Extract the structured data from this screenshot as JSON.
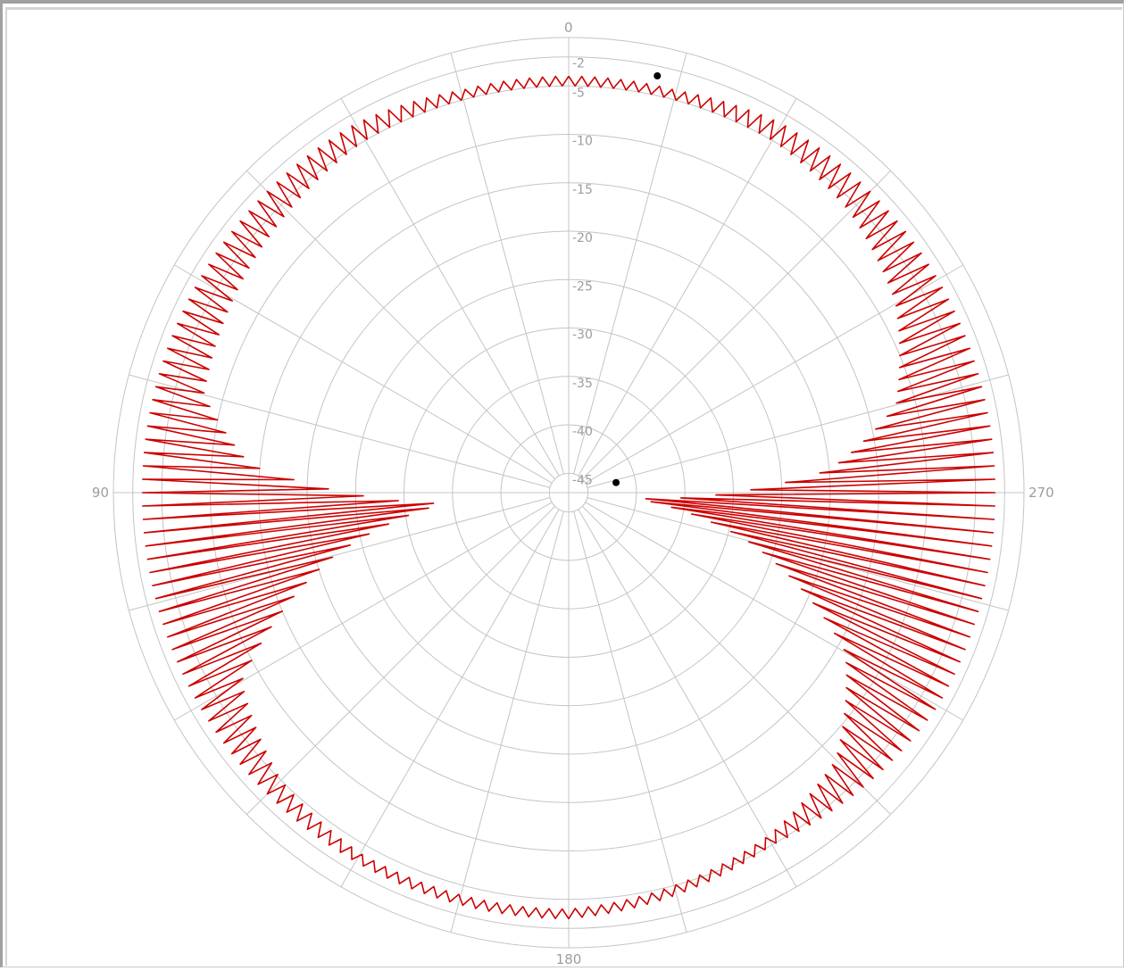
{
  "chart_data": {
    "type": "polar-line",
    "angle_direction": "counter-clockwise",
    "angle_zero": "top",
    "angle_labels": [
      "0",
      "90",
      "180",
      "270"
    ],
    "radial_labels": [
      "-2",
      "-5",
      "-10",
      "-15",
      "-20",
      "-25",
      "-30",
      "-35",
      "-40",
      "-45"
    ],
    "radial_range": [
      -47,
      0
    ],
    "grid": true,
    "spokes_every_deg": 15,
    "series": [
      {
        "color": "#cc0000",
        "pattern": "dense oscillating trace",
        "envelope": [
          {
            "angle": 0,
            "outer": -4,
            "inner": -5
          },
          {
            "angle": 15,
            "outer": -4,
            "inner": -5
          },
          {
            "angle": 30,
            "outer": -3,
            "inner": -5
          },
          {
            "angle": 45,
            "outer": -3,
            "inner": -6
          },
          {
            "angle": 60,
            "outer": -3,
            "inner": -7
          },
          {
            "angle": 75,
            "outer": -3,
            "inner": -8
          },
          {
            "angle": 85,
            "outer": -3,
            "inner": -14
          },
          {
            "angle": 95,
            "outer": -3,
            "inner": -34
          },
          {
            "angle": 105,
            "outer": -3,
            "inner": -22
          },
          {
            "angle": 120,
            "outer": -3,
            "inner": -8
          },
          {
            "angle": 135,
            "outer": -3,
            "inner": -5
          },
          {
            "angle": 150,
            "outer": -3,
            "inner": -4
          },
          {
            "angle": 165,
            "outer": -3,
            "inner": -4
          },
          {
            "angle": 180,
            "outer": -3,
            "inner": -4
          },
          {
            "angle": 195,
            "outer": -4,
            "inner": -5
          },
          {
            "angle": 210,
            "outer": -5,
            "inner": -6
          },
          {
            "angle": 225,
            "outer": -4,
            "inner": -8
          },
          {
            "angle": 240,
            "outer": -3,
            "inner": -14
          },
          {
            "angle": 255,
            "outer": -3,
            "inner": -28
          },
          {
            "angle": 265,
            "outer": -3,
            "inner": -40
          },
          {
            "angle": 275,
            "outer": -3,
            "inner": -20
          },
          {
            "angle": 285,
            "outer": -3,
            "inner": -12
          },
          {
            "angle": 300,
            "outer": -3,
            "inner": -8
          },
          {
            "angle": 315,
            "outer": -3,
            "inner": -6
          },
          {
            "angle": 330,
            "outer": -3,
            "inner": -5
          },
          {
            "angle": 345,
            "outer": -4,
            "inner": -5
          },
          {
            "angle": 360,
            "outer": -4,
            "inner": -5
          }
        ],
        "markers": [
          {
            "angle": 348,
            "value": -3
          },
          {
            "angle": 282,
            "value": -42
          }
        ]
      }
    ]
  }
}
